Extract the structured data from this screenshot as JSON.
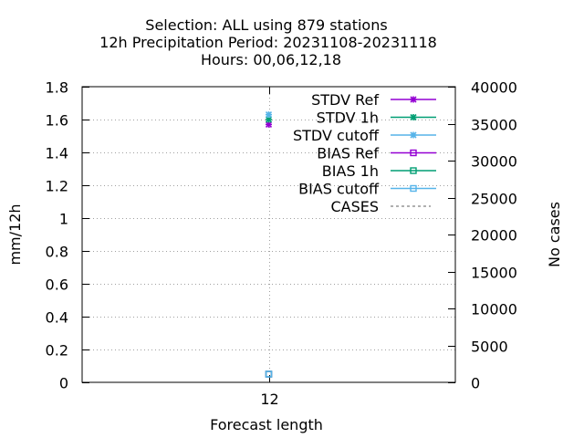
{
  "chart_data": {
    "type": "scatter",
    "title_lines": [
      "Selection: ALL using   879 stations",
      "12h Precipitation   Period: 20231108-20231118",
      "Hours:  00,06,12,18"
    ],
    "xlabel": "Forecast length",
    "ylabel": "mm/12h",
    "y2label": "No cases",
    "x_ticks": [
      "12"
    ],
    "x": [
      12
    ],
    "xlim": [
      0,
      24
    ],
    "ylim": [
      0,
      1.8
    ],
    "y_ticks": [
      "0",
      "0.2",
      "0.4",
      "0.6",
      "0.8",
      "1",
      "1.2",
      "1.4",
      "1.6",
      "1.8"
    ],
    "y2lim": [
      0,
      40000
    ],
    "y2_ticks": [
      "0",
      "5000",
      "10000",
      "15000",
      "20000",
      "25000",
      "30000",
      "35000",
      "40000"
    ],
    "grid": true,
    "legend_position": "top-right",
    "series": [
      {
        "name": "STDV Ref",
        "axis": "y",
        "color": "#9400d3",
        "marker": "star",
        "values": [
          1.57
        ]
      },
      {
        "name": "STDV 1h",
        "axis": "y",
        "color": "#009e73",
        "marker": "star",
        "values": [
          1.6
        ]
      },
      {
        "name": "STDV cutoff",
        "axis": "y",
        "color": "#56b4e9",
        "marker": "star",
        "values": [
          1.63
        ]
      },
      {
        "name": "BIAS Ref",
        "axis": "y",
        "color": "#9400d3",
        "marker": "square",
        "values": [
          0.05
        ]
      },
      {
        "name": "BIAS 1h",
        "axis": "y",
        "color": "#009e73",
        "marker": "square",
        "values": [
          0.05
        ]
      },
      {
        "name": "BIAS cutoff",
        "axis": "y",
        "color": "#56b4e9",
        "marker": "square",
        "values": [
          0.05
        ]
      },
      {
        "name": "CASES",
        "axis": "y2",
        "color": "#808080",
        "marker": "dashed",
        "values": [
          null
        ]
      }
    ]
  }
}
